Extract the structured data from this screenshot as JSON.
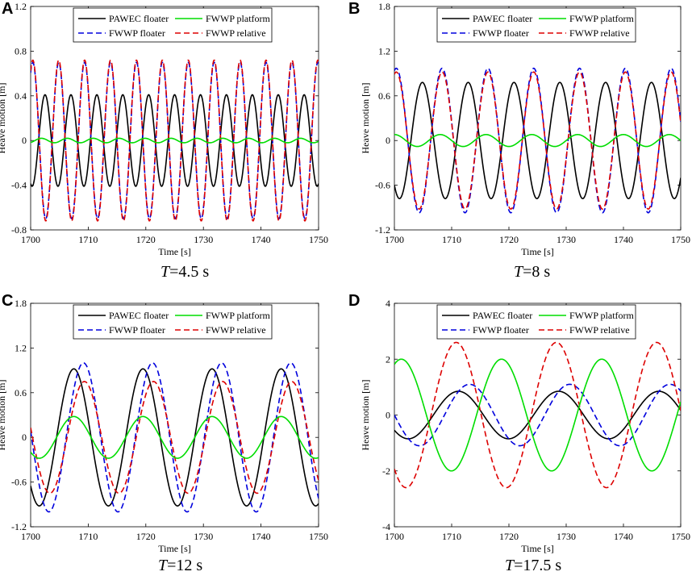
{
  "colors": {
    "pawec_floater": "#000000",
    "fwwp_platform": "#00dd00",
    "fwwp_floater": "#0000dd",
    "fwwp_relative": "#dd0000"
  },
  "legend_labels": [
    "PAWEC floater",
    "FWWP platform",
    "FWWP floater",
    "FWWP relative"
  ],
  "chart_data": [
    {
      "panel": "A",
      "type": "line",
      "period_label": "T",
      "period_value": "=4.5 s",
      "period_s": 4.5,
      "xlabel": "Time [s]",
      "ylabel": "Heave motion [m]",
      "xlim": [
        1700,
        1750
      ],
      "ylim": [
        -0.8,
        1.2
      ],
      "xticks": [
        "1700",
        "1710",
        "1720",
        "1730",
        "1740",
        "1750"
      ],
      "xtick_values": [
        1700,
        1710,
        1720,
        1730,
        1740,
        1750
      ],
      "yticks": [
        "-0.8",
        "-0.4",
        "0",
        "0.4",
        "0.8",
        "1.2"
      ],
      "ytick_values": [
        -0.8,
        -0.4,
        0,
        0.4,
        0.8,
        1.2
      ],
      "series": [
        {
          "name": "PAWEC floater",
          "style": "solid",
          "amplitude": 0.41,
          "phase_deg": 250
        },
        {
          "name": "FWWP platform",
          "style": "solid",
          "amplitude": 0.02,
          "phase_deg": 300
        },
        {
          "name": "FWWP floater",
          "style": "dashed",
          "amplitude": 0.7,
          "phase_deg": 60
        },
        {
          "name": "FWWP relative",
          "style": "dashed",
          "amplitude": 0.72,
          "phase_deg": 60
        }
      ]
    },
    {
      "panel": "B",
      "type": "line",
      "period_label": "T",
      "period_value": "=8 s",
      "period_s": 8,
      "xlabel": "Time [s]",
      "ylabel": "Heave motion [m]",
      "xlim": [
        1700,
        1750
      ],
      "ylim": [
        -1.2,
        1.8
      ],
      "xticks": [
        "1700",
        "1710",
        "1720",
        "1730",
        "1740",
        "1750"
      ],
      "xtick_values": [
        1700,
        1710,
        1720,
        1730,
        1740,
        1750
      ],
      "yticks": [
        "-1.2",
        "-0.6",
        "0",
        "0.6",
        "1.2",
        "1.8"
      ],
      "ytick_values": [
        -1.2,
        -0.6,
        0,
        0.6,
        1.2,
        1.8
      ],
      "series": [
        {
          "name": "PAWEC floater",
          "style": "solid",
          "amplitude": 0.78,
          "phase_deg": 230
        },
        {
          "name": "FWWP platform",
          "style": "solid",
          "amplitude": 0.08,
          "phase_deg": 90
        },
        {
          "name": "FWWP floater",
          "style": "dashed",
          "amplitude": 0.97,
          "phase_deg": 75
        },
        {
          "name": "FWWP relative",
          "style": "dashed",
          "amplitude": 0.92,
          "phase_deg": 75
        }
      ]
    },
    {
      "panel": "C",
      "type": "line",
      "period_label": "T",
      "period_value": "=12 s",
      "period_s": 12,
      "xlabel": "Time [s]",
      "ylabel": "Heave motion [m]",
      "xlim": [
        1700,
        1750
      ],
      "ylim": [
        -1.2,
        1.8
      ],
      "xticks": [
        "1700",
        "1710",
        "1720",
        "1730",
        "1740",
        "1750"
      ],
      "xtick_values": [
        1700,
        1710,
        1720,
        1730,
        1740,
        1750
      ],
      "yticks": [
        "-1.2",
        "-0.6",
        "0",
        "0.6",
        "1.2",
        "1.8"
      ],
      "ytick_values": [
        -1.2,
        -0.6,
        0,
        0.6,
        1.2,
        1.8
      ],
      "series": [
        {
          "name": "PAWEC floater",
          "style": "solid",
          "amplitude": 0.92,
          "phase_deg": 225
        },
        {
          "name": "FWWP platform",
          "style": "solid",
          "amplitude": 0.28,
          "phase_deg": 225
        },
        {
          "name": "FWWP floater",
          "style": "dashed",
          "amplitude": 1.0,
          "phase_deg": 175
        },
        {
          "name": "FWWP relative",
          "style": "dashed",
          "amplitude": 0.75,
          "phase_deg": 170
        }
      ]
    },
    {
      "panel": "D",
      "type": "line",
      "period_label": "T",
      "period_value": "=17.5 s",
      "period_s": 17.5,
      "xlabel": "Time [s]",
      "ylabel": "Heave motion [m]",
      "xlim": [
        1700,
        1750
      ],
      "ylim": [
        -4,
        4
      ],
      "xticks": [
        "1700",
        "1710",
        "1720",
        "1730",
        "1740",
        "1750"
      ],
      "xtick_values": [
        1700,
        1710,
        1720,
        1730,
        1740,
        1750
      ],
      "yticks": [
        "-4",
        "-2",
        "0",
        "2",
        "4"
      ],
      "ytick_values": [
        -4,
        -2,
        0,
        2,
        4
      ],
      "series": [
        {
          "name": "PAWEC floater",
          "style": "solid",
          "amplitude": 0.85,
          "phase_deg": 220
        },
        {
          "name": "FWWP platform",
          "style": "solid",
          "amplitude": 2.0,
          "phase_deg": 65
        },
        {
          "name": "FWWP floater",
          "style": "dashed",
          "amplitude": 1.1,
          "phase_deg": 180
        },
        {
          "name": "FWWP relative",
          "style": "dashed",
          "amplitude": 2.6,
          "phase_deg": 228
        }
      ]
    }
  ]
}
